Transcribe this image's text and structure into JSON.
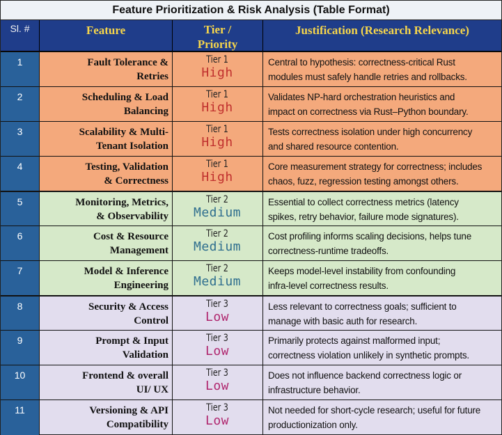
{
  "title": "Feature Prioritization & Risk Analysis (Table Format)",
  "headers": {
    "sl": "Sl. #",
    "feature": "Feature",
    "tier_line1": "Tier /",
    "tier_line2": "Priority",
    "justification": "Justification (Research Relevance)"
  },
  "colors": {
    "header_bg": "#1f3d8a",
    "header_text": "#f7d64b",
    "high_row": "#f4a97c",
    "medium_row": "#d6e9c9",
    "low_row": "#e2ddee",
    "high_text": "#c0302e",
    "medium_text": "#2e6e8e",
    "low_text": "#b0266e"
  },
  "rows": [
    {
      "sl": "1",
      "feature_line1": "Fault Tolerance &",
      "feature_line2": "Retries",
      "tier": "Tier 1",
      "priority": "High",
      "just_line1": "Central to hypothesis: correctness-critical Rust",
      "just_line2": "modules must safely handle retries and rollbacks."
    },
    {
      "sl": "2",
      "feature_line1": "Scheduling & Load",
      "feature_line2": "Balancing",
      "tier": "Tier 1",
      "priority": "High",
      "just_line1": "Validates NP-hard orchestration heuristics and",
      "just_line2": "impact on correctness via Rust–Python boundary."
    },
    {
      "sl": "3",
      "feature_line1": "Scalability & Multi-",
      "feature_line2": "Tenant Isolation",
      "tier": "Tier 1",
      "priority": "High",
      "just_line1": "Tests correctness isolation under high concurrency",
      "just_line2": "and shared resource contention."
    },
    {
      "sl": "4",
      "feature_line1": "Testing, Validation",
      "feature_line2": "& Correctness",
      "tier": "Tier 1",
      "priority": "High",
      "just_line1": "Core measurement strategy for correctness; includes",
      "just_line2": "chaos, fuzz, regression testing amongst others."
    },
    {
      "sl": "5",
      "feature_line1": "Monitoring, Metrics,",
      "feature_line2": "& Observability",
      "tier": "Tier 2",
      "priority": "Medium",
      "just_line1": "Essential to collect correctness metrics (latency",
      "just_line2": "spikes, retry behavior, failure mode signatures)."
    },
    {
      "sl": "6",
      "feature_line1": "Cost & Resource",
      "feature_line2": "Management",
      "tier": "Tier 2",
      "priority": "Medium",
      "just_line1": "Cost profiling informs scaling decisions, helps tune",
      "just_line2": "correctness-runtime tradeoffs."
    },
    {
      "sl": "7",
      "feature_line1": "Model & Inference",
      "feature_line2": "Engineering",
      "tier": "Tier 2",
      "priority": "Medium",
      "just_line1": "Keeps model-level instability from confounding",
      "just_line2": "infra-level correctness results."
    },
    {
      "sl": "8",
      "feature_line1": "Security & Access",
      "feature_line2": "Control",
      "tier": "Tier 3",
      "priority": "Low",
      "just_line1": "Less relevant to correctness goals; sufficient to",
      "just_line2": "manage with basic auth for research."
    },
    {
      "sl": "9",
      "feature_line1": "Prompt & Input",
      "feature_line2": "Validation",
      "tier": "Tier 3",
      "priority": "Low",
      "just_line1": "Primarily protects against malformed input;",
      "just_line2": "correctness violation unlikely in synthetic prompts."
    },
    {
      "sl": "10",
      "feature_line1": "Frontend & overall",
      "feature_line2": "UI/ UX",
      "tier": "Tier 3",
      "priority": "Low",
      "just_line1": "Does not influence backend correctness logic or",
      "just_line2": "infrastructure behavior."
    },
    {
      "sl": "11",
      "feature_line1": "Versioning & API",
      "feature_line2": "Compatibility",
      "tier": "Tier 3",
      "priority": "Low",
      "just_line1": "Not needed for short-cycle research; useful for future",
      "just_line2": "productionization only."
    }
  ]
}
